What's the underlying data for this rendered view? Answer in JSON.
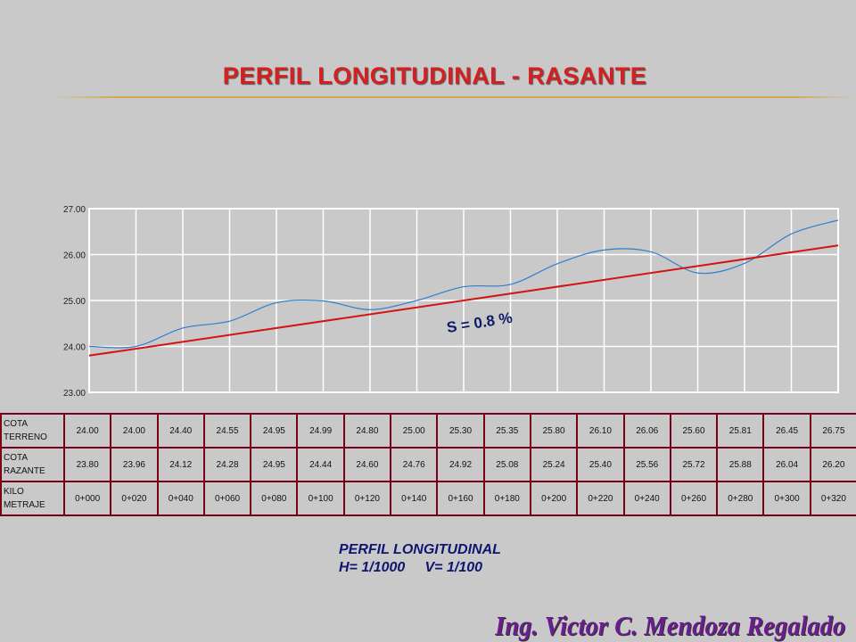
{
  "title": "PERFIL LONGITUDINAL - RASANTE",
  "colors": {
    "title": "#d42020",
    "terrain_line": "#2f7fd0",
    "grade_line": "#d21414",
    "table_border": "#7a0018",
    "caption": "#0e1670",
    "author": "#6a1e8e"
  },
  "chart_data": {
    "type": "line",
    "title": "",
    "xlabel": "",
    "ylabel": "",
    "ylim": [
      23.0,
      27.0
    ],
    "y_ticks": [
      "23.00",
      "24.00",
      "25.00",
      "26.00",
      "27.00"
    ],
    "grid": true,
    "x": [
      "0+000",
      "0+020",
      "0+040",
      "0+060",
      "0+080",
      "0+100",
      "0+120",
      "0+140",
      "0+160",
      "0+180",
      "0+200",
      "0+220",
      "0+240",
      "0+260",
      "0+280",
      "0+300",
      "0+320"
    ],
    "series": [
      {
        "name": "COTA TERRENO",
        "values": [
          24.0,
          24.0,
          24.4,
          24.55,
          24.95,
          24.99,
          24.8,
          25.0,
          25.3,
          25.35,
          25.8,
          26.1,
          26.06,
          25.6,
          25.81,
          26.45,
          26.75
        ]
      },
      {
        "name": "COTA RAZANTE",
        "values": [
          23.8,
          23.96,
          24.12,
          24.28,
          24.95,
          24.44,
          24.6,
          24.76,
          24.92,
          25.08,
          25.24,
          25.4,
          25.56,
          25.72,
          25.88,
          26.04,
          26.2
        ]
      }
    ],
    "annotation": "S = 0.8 %"
  },
  "table": {
    "rows": [
      {
        "label_1": "COTA",
        "label_2": "TERRENO",
        "values": [
          "24.00",
          "24.00",
          "24.40",
          "24.55",
          "24.95",
          "24.99",
          "24.80",
          "25.00",
          "25.30",
          "25.35",
          "25.80",
          "26.10",
          "26.06",
          "25.60",
          "25.81",
          "26.45",
          "26.75"
        ]
      },
      {
        "label_1": "COTA",
        "label_2": "RAZANTE",
        "values": [
          "23.80",
          "23.96",
          "24.12",
          "24.28",
          "24.95",
          "24.44",
          "24.60",
          "24.76",
          "24.92",
          "25.08",
          "25.24",
          "25.40",
          "25.56",
          "25.72",
          "25.88",
          "26.04",
          "26.20"
        ]
      },
      {
        "label_1": "KILO",
        "label_2": "METRAJE",
        "values": [
          "0+000",
          "0+020",
          "0+040",
          "0+060",
          "0+080",
          "0+100",
          "0+120",
          "0+140",
          "0+160",
          "0+180",
          "0+200",
          "0+220",
          "0+240",
          "0+260",
          "0+280",
          "0+300",
          "0+320"
        ]
      }
    ]
  },
  "caption": {
    "line1": "PERFIL LONGITUDINAL",
    "line2": "H= 1/1000     V= 1/100"
  },
  "author": "Ing. Victor C. Mendoza Regalado"
}
